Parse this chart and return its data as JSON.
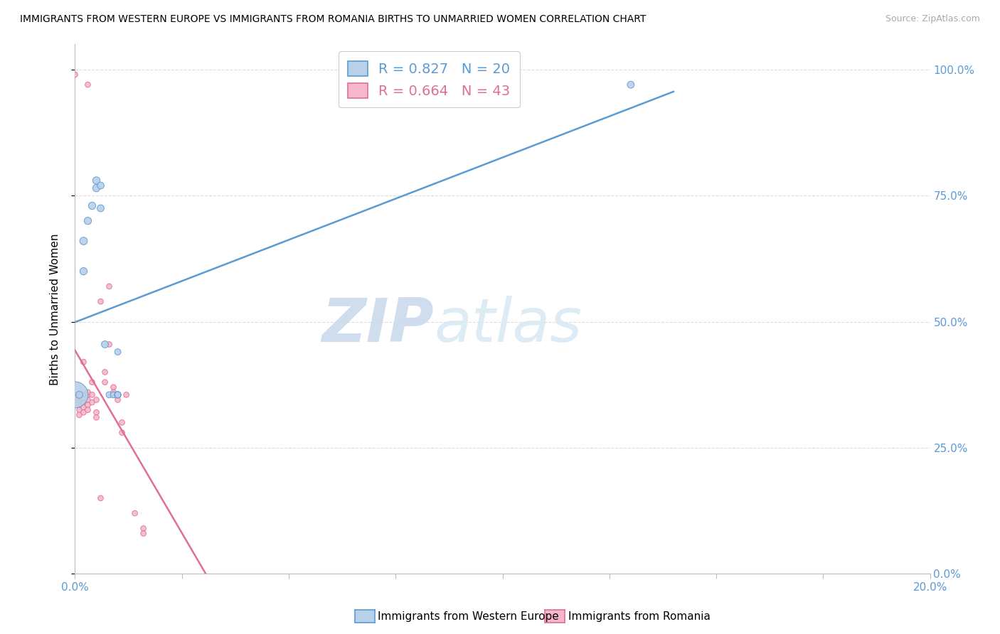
{
  "title": "IMMIGRANTS FROM WESTERN EUROPE VS IMMIGRANTS FROM ROMANIA BIRTHS TO UNMARRIED WOMEN CORRELATION CHART",
  "source": "Source: ZipAtlas.com",
  "ylabel": "Births to Unmarried Women",
  "legend_blue_R": 0.827,
  "legend_blue_N": 20,
  "legend_pink_R": 0.664,
  "legend_pink_N": 43,
  "legend_blue_label": "Immigrants from Western Europe",
  "legend_pink_label": "Immigrants from Romania",
  "blue_fill": "#b8d0e8",
  "pink_fill": "#f5b8ca",
  "blue_edge": "#5b9bd5",
  "pink_edge": "#e07090",
  "blue_line": "#5b9bd5",
  "pink_line": "#e07090",
  "watermark_color": "#dce9f5",
  "xlim": [
    0.0,
    0.2
  ],
  "ylim": [
    0.0,
    1.05
  ],
  "blue_points_x": [
    0.0,
    0.001,
    0.002,
    0.002,
    0.003,
    0.004,
    0.005,
    0.005,
    0.006,
    0.006,
    0.007,
    0.008,
    0.009,
    0.01,
    0.01,
    0.01,
    0.01,
    0.01,
    0.13,
    0.01
  ],
  "blue_points_y": [
    0.355,
    0.355,
    0.66,
    0.6,
    0.7,
    0.73,
    0.765,
    0.78,
    0.77,
    0.725,
    0.455,
    0.355,
    0.355,
    0.355,
    0.355,
    0.44,
    0.355,
    0.355,
    0.97,
    0.355
  ],
  "blue_sizes": [
    700,
    50,
    60,
    55,
    55,
    55,
    55,
    55,
    50,
    50,
    50,
    40,
    40,
    40,
    40,
    40,
    40,
    40,
    50,
    40
  ],
  "pink_points_x": [
    0.0,
    0.0,
    0.001,
    0.001,
    0.001,
    0.001,
    0.001,
    0.001,
    0.002,
    0.002,
    0.002,
    0.002,
    0.002,
    0.003,
    0.003,
    0.003,
    0.003,
    0.003,
    0.004,
    0.004,
    0.004,
    0.005,
    0.005,
    0.005,
    0.006,
    0.006,
    0.007,
    0.007,
    0.008,
    0.008,
    0.009,
    0.009,
    0.009,
    0.01,
    0.01,
    0.011,
    0.011,
    0.012,
    0.014,
    0.016,
    0.016,
    0.0,
    0.003
  ],
  "pink_points_y": [
    0.99,
    0.345,
    0.355,
    0.345,
    0.335,
    0.325,
    0.315,
    0.35,
    0.34,
    0.33,
    0.32,
    0.355,
    0.42,
    0.355,
    0.345,
    0.335,
    0.325,
    0.36,
    0.355,
    0.34,
    0.38,
    0.32,
    0.31,
    0.345,
    0.15,
    0.54,
    0.38,
    0.4,
    0.455,
    0.57,
    0.37,
    0.36,
    0.355,
    0.355,
    0.345,
    0.3,
    0.28,
    0.355,
    0.12,
    0.09,
    0.08,
    0.355,
    0.97
  ],
  "pink_sizes": [
    30,
    30,
    30,
    30,
    30,
    30,
    30,
    30,
    30,
    30,
    30,
    30,
    30,
    30,
    30,
    30,
    30,
    30,
    30,
    30,
    30,
    30,
    30,
    30,
    30,
    30,
    30,
    30,
    30,
    30,
    30,
    30,
    30,
    30,
    30,
    30,
    30,
    30,
    30,
    30,
    30,
    30,
    30
  ],
  "ytick_positions": [
    0.0,
    0.25,
    0.5,
    0.75,
    1.0
  ],
  "ytick_labels_right": [
    "0.0%",
    "25.0%",
    "50.0%",
    "75.0%",
    "100.0%"
  ],
  "xtick_positions": [
    0.0,
    0.025,
    0.05,
    0.075,
    0.1,
    0.125,
    0.15,
    0.175,
    0.2
  ],
  "xtick_labels": [
    "0.0%",
    "",
    "",
    "",
    "",
    "",
    "",
    "",
    "20.0%"
  ]
}
